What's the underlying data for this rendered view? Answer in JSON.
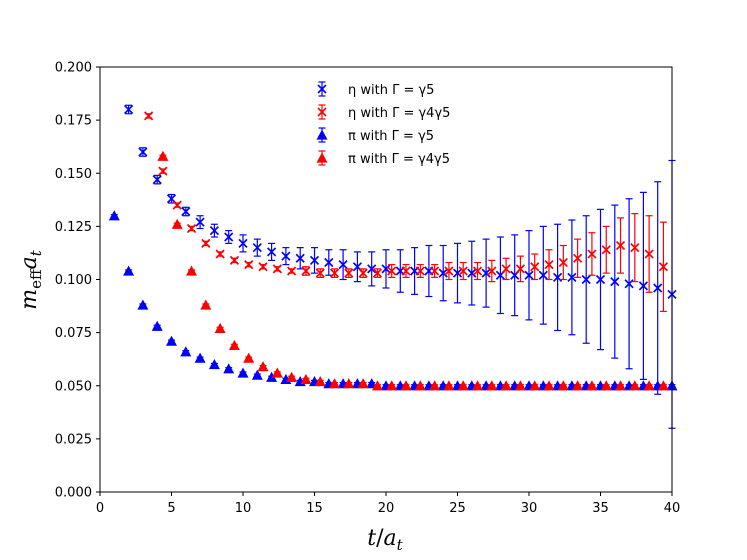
{
  "chart_data": {
    "type": "scatter",
    "title": "",
    "xlabel": "t/a_t",
    "ylabel": "m_eff a_t",
    "xlim": [
      0,
      40
    ],
    "ylim": [
      0,
      0.2
    ],
    "xticks": [
      "0",
      "5",
      "10",
      "15",
      "20",
      "25",
      "30",
      "35",
      "40"
    ],
    "yticks": [
      "0.000",
      "0.025",
      "0.050",
      "0.075",
      "0.100",
      "0.125",
      "0.150",
      "0.175",
      "0.200"
    ],
    "legend_position": "top-center",
    "series": [
      {
        "name": "η with Γ = γ5",
        "color": "#0000ff",
        "marker": "x",
        "x": [
          2,
          3,
          4,
          5,
          6,
          7,
          8,
          9,
          10,
          11,
          12,
          13,
          14,
          15,
          16,
          17,
          18,
          19,
          20,
          21,
          22,
          23,
          24,
          25,
          26,
          27,
          28,
          29,
          30,
          31,
          32,
          33,
          34,
          35,
          36,
          37,
          38,
          39,
          40
        ],
        "y": [
          0.18,
          0.16,
          0.147,
          0.138,
          0.132,
          0.127,
          0.123,
          0.12,
          0.117,
          0.115,
          0.113,
          0.111,
          0.11,
          0.109,
          0.108,
          0.107,
          0.106,
          0.105,
          0.105,
          0.104,
          0.104,
          0.104,
          0.103,
          0.103,
          0.103,
          0.103,
          0.102,
          0.102,
          0.102,
          0.102,
          0.101,
          0.101,
          0.1,
          0.1,
          0.099,
          0.098,
          0.097,
          0.096,
          0.093
        ],
        "err": [
          0.002,
          0.002,
          0.002,
          0.002,
          0.002,
          0.003,
          0.003,
          0.003,
          0.004,
          0.004,
          0.004,
          0.004,
          0.005,
          0.006,
          0.006,
          0.007,
          0.007,
          0.008,
          0.009,
          0.01,
          0.011,
          0.012,
          0.013,
          0.014,
          0.015,
          0.016,
          0.018,
          0.019,
          0.021,
          0.023,
          0.025,
          0.027,
          0.03,
          0.033,
          0.036,
          0.04,
          0.044,
          0.05,
          0.063
        ]
      },
      {
        "name": "η with Γ = γ4γ5",
        "color": "#ff0000",
        "marker": "x",
        "x": [
          3.4,
          4.4,
          5.4,
          6.4,
          7.4,
          8.4,
          9.4,
          10.4,
          11.4,
          12.4,
          13.4,
          14.4,
          15.4,
          16.4,
          17.4,
          18.4,
          19.4,
          20.4,
          21.4,
          22.4,
          23.4,
          24.4,
          25.4,
          26.4,
          27.4,
          28.4,
          29.4,
          30.4,
          31.4,
          32.4,
          33.4,
          34.4,
          35.4,
          36.4,
          37.4,
          38.4,
          39.4
        ],
        "y": [
          0.177,
          0.151,
          0.135,
          0.124,
          0.117,
          0.112,
          0.109,
          0.107,
          0.106,
          0.105,
          0.104,
          0.104,
          0.103,
          0.103,
          0.103,
          0.103,
          0.103,
          0.104,
          0.104,
          0.104,
          0.104,
          0.104,
          0.104,
          0.104,
          0.104,
          0.105,
          0.105,
          0.106,
          0.107,
          0.108,
          0.11,
          0.112,
          0.114,
          0.116,
          0.115,
          0.112,
          0.106
        ],
        "err": [
          0.001,
          0.001,
          0.001,
          0.001,
          0.001,
          0.001,
          0.001,
          0.001,
          0.001,
          0.001,
          0.001,
          0.002,
          0.002,
          0.002,
          0.002,
          0.002,
          0.002,
          0.003,
          0.003,
          0.003,
          0.003,
          0.004,
          0.004,
          0.004,
          0.005,
          0.005,
          0.006,
          0.006,
          0.007,
          0.008,
          0.009,
          0.01,
          0.011,
          0.013,
          0.016,
          0.018,
          0.021
        ]
      },
      {
        "name": "π with Γ = γ5",
        "color": "#0000ff",
        "marker": "triangle",
        "x": [
          1,
          2,
          3,
          4,
          5,
          6,
          7,
          8,
          9,
          10,
          11,
          12,
          13,
          14,
          15,
          16,
          17,
          18,
          19,
          20,
          21,
          22,
          23,
          24,
          25,
          26,
          27,
          28,
          29,
          30,
          31,
          32,
          33,
          34,
          35,
          36,
          37,
          38,
          39,
          40
        ],
        "y": [
          0.13,
          0.104,
          0.088,
          0.078,
          0.071,
          0.066,
          0.063,
          0.06,
          0.058,
          0.056,
          0.055,
          0.054,
          0.053,
          0.052,
          0.052,
          0.051,
          0.051,
          0.051,
          0.051,
          0.05,
          0.05,
          0.05,
          0.05,
          0.05,
          0.05,
          0.05,
          0.05,
          0.05,
          0.05,
          0.05,
          0.05,
          0.05,
          0.05,
          0.05,
          0.05,
          0.05,
          0.05,
          0.05,
          0.05,
          0.05
        ],
        "err": [
          0.0005,
          0.0005,
          0.0005,
          0.0005,
          0.0005,
          0.0005,
          0.0005,
          0.0005,
          0.0005,
          0.0005,
          0.0005,
          0.0005,
          0.0005,
          0.0005,
          0.0005,
          0.0005,
          0.0005,
          0.0005,
          0.0005,
          0.0005,
          0.0005,
          0.0005,
          0.0005,
          0.0005,
          0.0005,
          0.0005,
          0.0005,
          0.0005,
          0.0005,
          0.0005,
          0.0005,
          0.0005,
          0.0005,
          0.0005,
          0.0005,
          0.0005,
          0.0005,
          0.0005,
          0.0005,
          0.0005
        ]
      },
      {
        "name": "π with Γ = γ4γ5",
        "color": "#ff0000",
        "marker": "triangle",
        "x": [
          4.4,
          5.4,
          6.4,
          7.4,
          8.4,
          9.4,
          10.4,
          11.4,
          12.4,
          13.4,
          14.4,
          15.4,
          16.4,
          17.4,
          18.4,
          19.4,
          20.4,
          21.4,
          22.4,
          23.4,
          24.4,
          25.4,
          26.4,
          27.4,
          28.4,
          29.4,
          30.4,
          31.4,
          32.4,
          33.4,
          34.4,
          35.4,
          36.4,
          37.4,
          38.4,
          39.4
        ],
        "y": [
          0.158,
          0.126,
          0.104,
          0.088,
          0.077,
          0.069,
          0.063,
          0.059,
          0.056,
          0.054,
          0.053,
          0.052,
          0.051,
          0.051,
          0.051,
          0.05,
          0.05,
          0.05,
          0.05,
          0.05,
          0.05,
          0.05,
          0.05,
          0.05,
          0.05,
          0.05,
          0.05,
          0.05,
          0.05,
          0.05,
          0.05,
          0.05,
          0.05,
          0.05,
          0.05,
          0.05
        ],
        "err": [
          0.0005,
          0.0005,
          0.0005,
          0.0005,
          0.0005,
          0.0005,
          0.0005,
          0.0005,
          0.0005,
          0.0005,
          0.0005,
          0.0005,
          0.0005,
          0.0005,
          0.0005,
          0.0005,
          0.0005,
          0.0005,
          0.0005,
          0.0005,
          0.0005,
          0.0005,
          0.0005,
          0.0005,
          0.0005,
          0.0005,
          0.0005,
          0.0005,
          0.0005,
          0.0005,
          0.0005,
          0.0005,
          0.0005,
          0.0005,
          0.0005,
          0.0005
        ]
      }
    ]
  }
}
